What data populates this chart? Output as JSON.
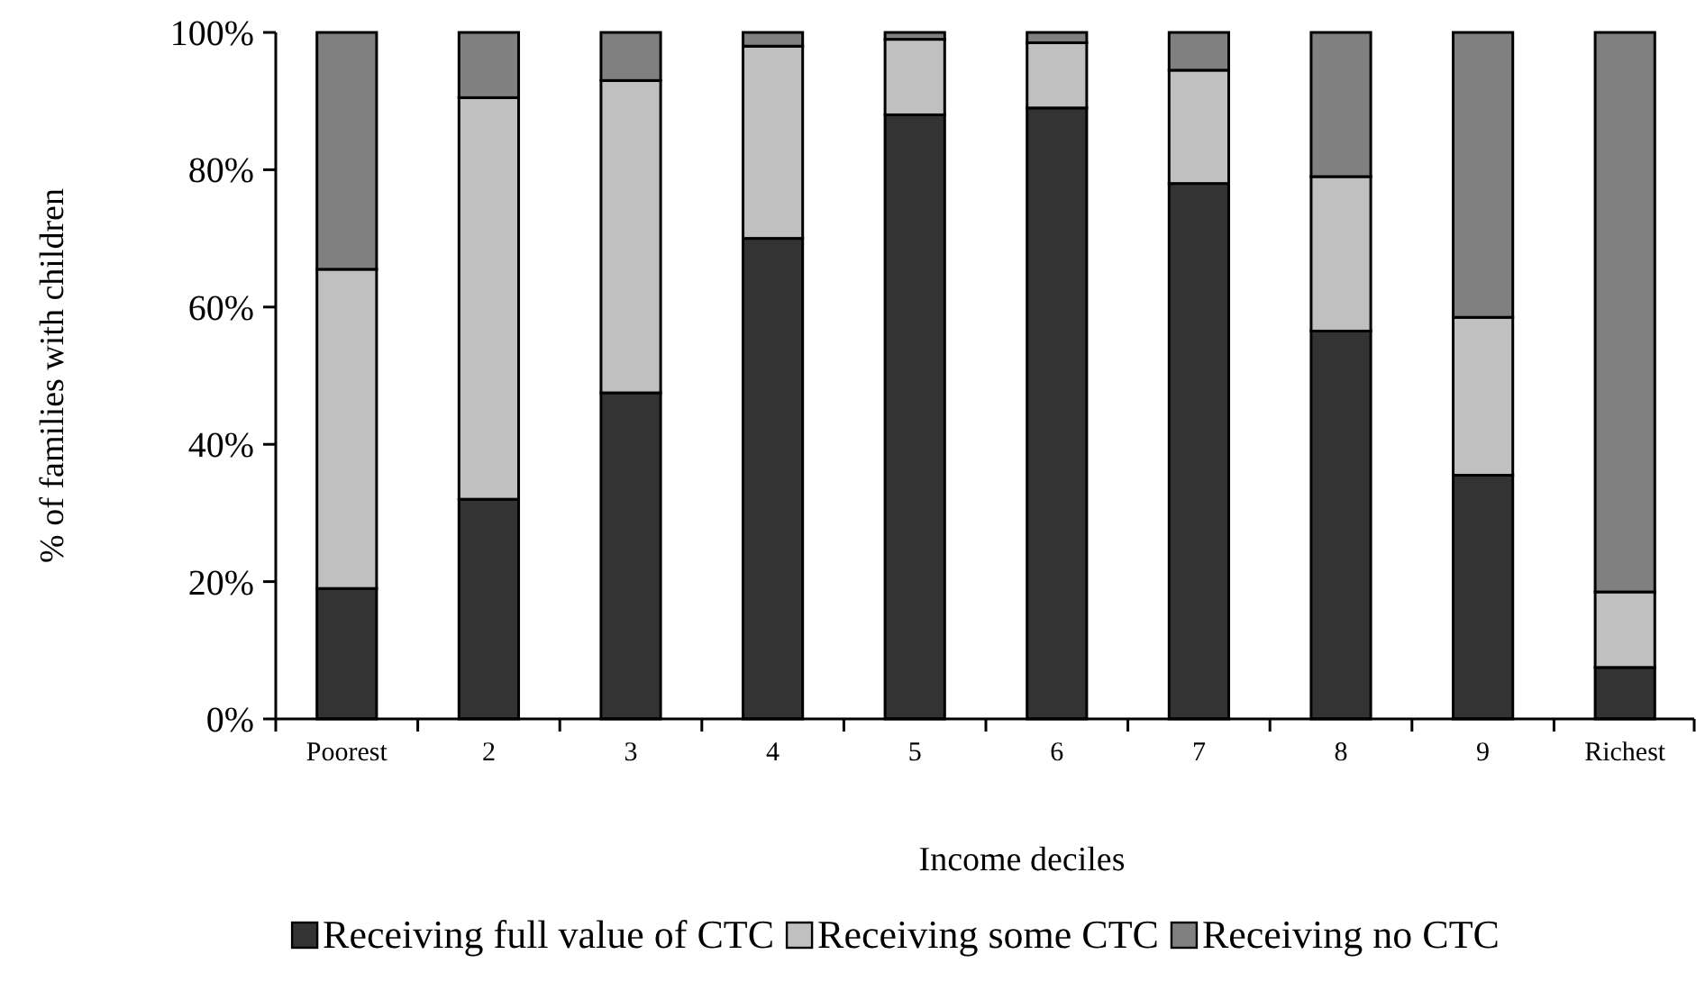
{
  "chart_data": {
    "type": "bar",
    "stacked": true,
    "xlabel": "Income deciles",
    "ylabel": "% of families with children",
    "categories": [
      "Poorest",
      "2",
      "3",
      "4",
      "5",
      "6",
      "7",
      "8",
      "9",
      "Richest"
    ],
    "series": [
      {
        "name": "Receiving full value of CTC",
        "color": "#333333",
        "values": [
          19,
          32,
          47.5,
          70,
          88,
          89,
          78,
          56.5,
          35.5,
          7.5
        ]
      },
      {
        "name": "Receiving some CTC",
        "color": "#c0c0c0",
        "values": [
          46.5,
          58.5,
          45.5,
          28,
          11,
          9.5,
          16.5,
          22.5,
          23,
          11
        ]
      },
      {
        "name": "Receiving no CTC",
        "color": "#808080",
        "values": [
          34.5,
          9.5,
          7,
          2,
          1,
          1.5,
          5.5,
          21,
          41.5,
          81.5
        ]
      }
    ],
    "ylim": [
      0,
      100
    ],
    "yticks": [
      {
        "value": 0,
        "label": "0%"
      },
      {
        "value": 20,
        "label": "20%"
      },
      {
        "value": 40,
        "label": "40%"
      },
      {
        "value": 60,
        "label": "60%"
      },
      {
        "value": 80,
        "label": "80%"
      },
      {
        "value": 100,
        "label": "100%"
      }
    ],
    "legend": "bottom"
  }
}
